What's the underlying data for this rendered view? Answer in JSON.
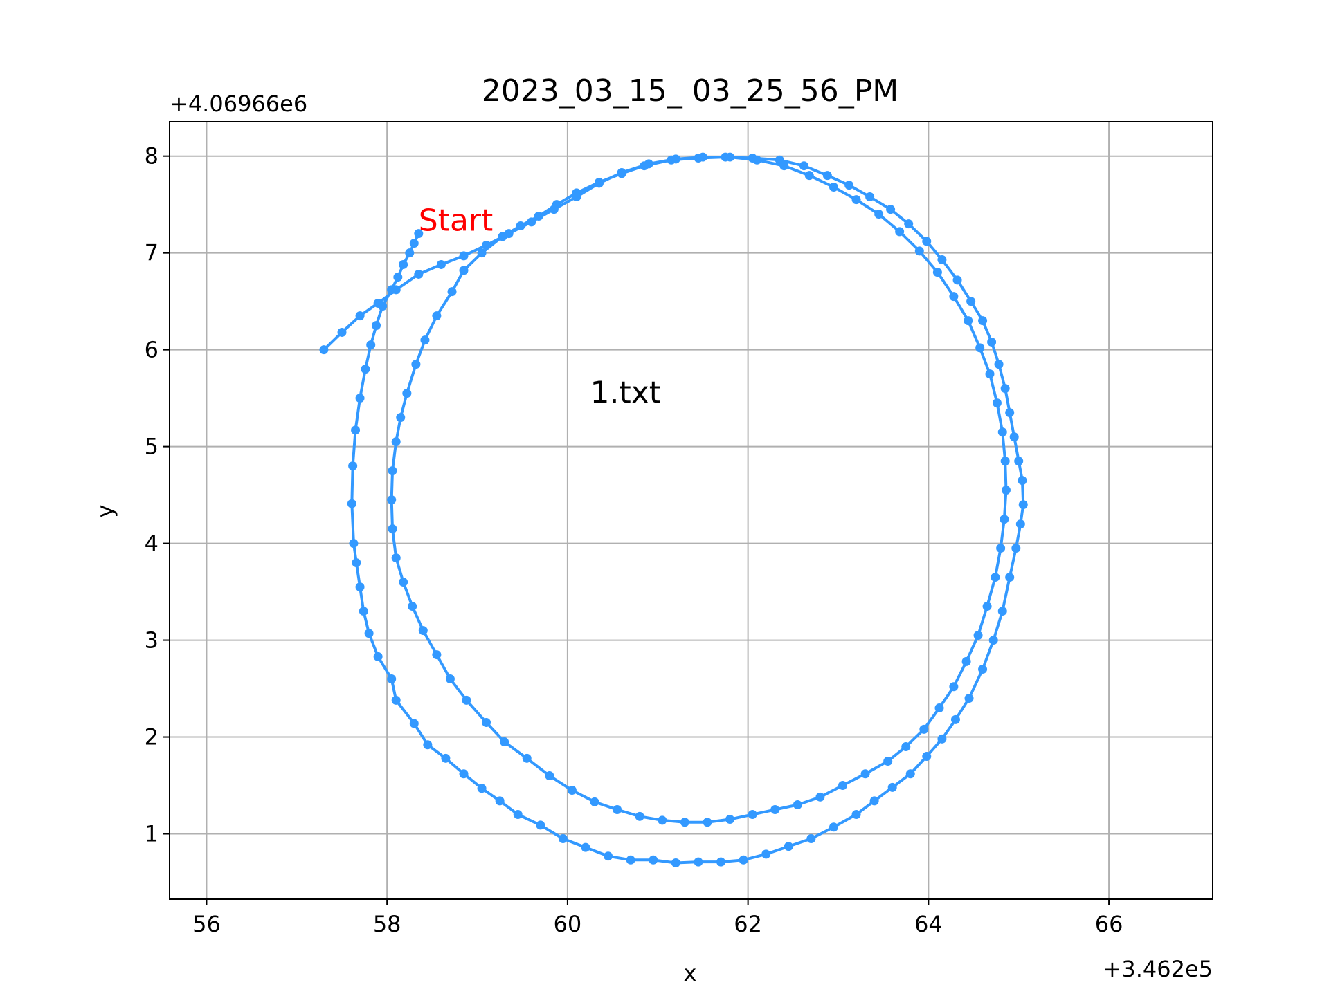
{
  "chart_data": {
    "type": "line",
    "title": "2023_03_15_ 03_25_56_PM",
    "xlabel": "x",
    "ylabel": "y",
    "x_offset_text": "+3.462e5",
    "y_offset_text": "+4.06966e6",
    "annotations": [
      "Start",
      "1.txt"
    ],
    "xlim": [
      55.59,
      67.15
    ],
    "ylim": [
      0.325,
      8.355
    ],
    "xticks": [
      56,
      58,
      60,
      62,
      64,
      66
    ],
    "yticks": [
      1,
      2,
      3,
      4,
      5,
      6,
      7,
      8
    ],
    "grid": true,
    "color": "#3399ff",
    "x": [
      58.35,
      58.3,
      58.25,
      58.18,
      58.12,
      58.05,
      57.95,
      57.88,
      57.82,
      57.76,
      57.7,
      57.65,
      57.62,
      57.61,
      57.63,
      57.66,
      57.7,
      57.74,
      57.8,
      57.9,
      58.05,
      58.1,
      58.3,
      58.45,
      58.65,
      58.85,
      59.05,
      59.25,
      59.45,
      59.7,
      59.95,
      60.2,
      60.45,
      60.7,
      60.95,
      61.2,
      61.45,
      61.7,
      61.95,
      62.2,
      62.45,
      62.7,
      62.95,
      63.2,
      63.4,
      63.6,
      63.8,
      63.98,
      64.15,
      64.3,
      64.45,
      64.6,
      64.72,
      64.82,
      64.9,
      64.97,
      65.02,
      65.05,
      65.04,
      65.0,
      64.95,
      64.9,
      64.85,
      64.78,
      64.7,
      64.6,
      64.47,
      64.32,
      64.15,
      63.98,
      63.78,
      63.58,
      63.35,
      63.12,
      62.88,
      62.62,
      62.35,
      62.05,
      61.75,
      61.45,
      61.15,
      60.85,
      60.6,
      60.35,
      60.1,
      59.88,
      59.68,
      59.48,
      59.28,
      59.05,
      58.85,
      58.72,
      58.55,
      58.42,
      58.32,
      58.22,
      58.15,
      58.1,
      58.06,
      58.05,
      58.06,
      58.1,
      58.18,
      58.28,
      58.4,
      58.55,
      58.7,
      58.88,
      59.1,
      59.3,
      59.55,
      59.8,
      60.05,
      60.3,
      60.55,
      60.8,
      61.05,
      61.3,
      61.55,
      61.8,
      62.05,
      62.3,
      62.55,
      62.8,
      63.05,
      63.3,
      63.55,
      63.75,
      63.95,
      64.12,
      64.28,
      64.42,
      64.55,
      64.65,
      64.74,
      64.8,
      64.84,
      64.86,
      64.85,
      64.82,
      64.76,
      64.68,
      64.57,
      64.44,
      64.28,
      64.1,
      63.9,
      63.68,
      63.45,
      63.2,
      62.95,
      62.68,
      62.4,
      62.1,
      61.8,
      61.5,
      61.2,
      60.9,
      60.6,
      60.35,
      60.1,
      59.85,
      59.6,
      59.35,
      59.1,
      58.85,
      58.6,
      58.35,
      58.1,
      57.9,
      57.7,
      57.5,
      57.3
    ],
    "values": [
      7.2,
      7.1,
      7.0,
      6.88,
      6.75,
      6.62,
      6.45,
      6.25,
      6.05,
      5.8,
      5.5,
      5.17,
      4.8,
      4.41,
      4.0,
      3.8,
      3.55,
      3.3,
      3.07,
      2.83,
      2.6,
      2.38,
      2.14,
      1.92,
      1.78,
      1.62,
      1.47,
      1.34,
      1.2,
      1.09,
      0.95,
      0.86,
      0.77,
      0.73,
      0.73,
      0.7,
      0.71,
      0.71,
      0.73,
      0.79,
      0.87,
      0.95,
      1.07,
      1.2,
      1.34,
      1.48,
      1.62,
      1.8,
      1.98,
      2.18,
      2.4,
      2.7,
      3.0,
      3.3,
      3.65,
      3.95,
      4.2,
      4.4,
      4.65,
      4.85,
      5.1,
      5.35,
      5.6,
      5.85,
      6.08,
      6.3,
      6.5,
      6.72,
      6.93,
      7.12,
      7.3,
      7.45,
      7.58,
      7.7,
      7.8,
      7.9,
      7.96,
      7.98,
      7.99,
      7.98,
      7.96,
      7.9,
      7.82,
      7.73,
      7.62,
      7.5,
      7.38,
      7.28,
      7.17,
      7.0,
      6.82,
      6.6,
      6.35,
      6.1,
      5.85,
      5.55,
      5.3,
      5.05,
      4.75,
      4.45,
      4.15,
      3.85,
      3.6,
      3.35,
      3.1,
      2.85,
      2.6,
      2.38,
      2.15,
      1.95,
      1.78,
      1.6,
      1.45,
      1.33,
      1.25,
      1.18,
      1.14,
      1.12,
      1.12,
      1.15,
      1.2,
      1.25,
      1.3,
      1.38,
      1.5,
      1.62,
      1.75,
      1.9,
      2.08,
      2.3,
      2.52,
      2.78,
      3.05,
      3.35,
      3.65,
      3.95,
      4.25,
      4.55,
      4.85,
      5.15,
      5.45,
      5.75,
      6.02,
      6.3,
      6.55,
      6.8,
      7.02,
      7.22,
      7.4,
      7.55,
      7.68,
      7.8,
      7.9,
      7.96,
      7.99,
      7.99,
      7.97,
      7.92,
      7.83,
      7.72,
      7.58,
      7.45,
      7.32,
      7.2,
      7.08,
      6.97,
      6.88,
      6.78,
      6.62,
      6.48,
      6.35,
      6.18,
      6.0
    ]
  }
}
